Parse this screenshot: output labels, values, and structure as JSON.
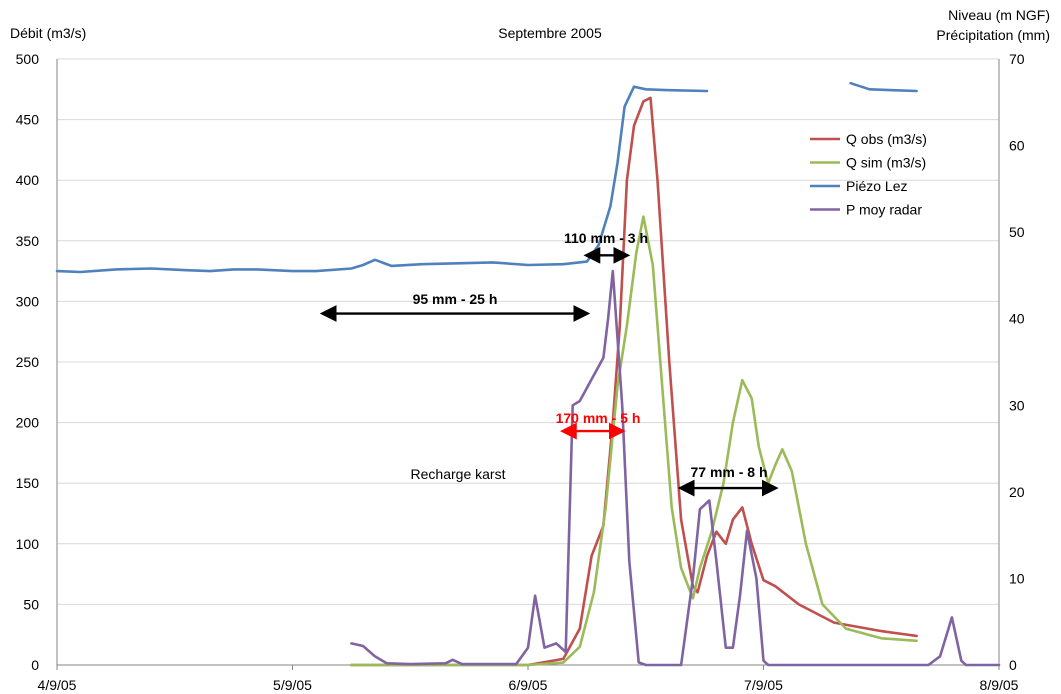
{
  "chart_data": {
    "type": "line",
    "title": "Septembre 2005",
    "ylabel_left": "Débit (m3/s)",
    "ylabel_right_line1": "Niveau (m NGF)",
    "ylabel_right_line2": "Précipitation (mm)",
    "x_ticks": [
      "4/9/05",
      "5/9/05",
      "6/9/05",
      "7/9/05",
      "8/9/05"
    ],
    "x_range_days": [
      4,
      8
    ],
    "ylim_left": [
      0,
      500
    ],
    "yticks_left": [
      "0",
      "50",
      "100",
      "150",
      "200",
      "250",
      "300",
      "350",
      "400",
      "450",
      "500"
    ],
    "ylim_right": [
      0,
      70
    ],
    "yticks_right": [
      "0",
      "10",
      "20",
      "30",
      "40",
      "50",
      "60",
      "70"
    ],
    "legend_position": "top-right",
    "grid": "horizontal",
    "series": [
      {
        "name": "Q obs (m3/s)",
        "color": "#c0504d",
        "axis": "left",
        "points": [
          [
            5.25,
            0
          ],
          [
            6.0,
            0
          ],
          [
            6.15,
            5
          ],
          [
            6.22,
            30
          ],
          [
            6.27,
            90
          ],
          [
            6.32,
            115
          ],
          [
            6.36,
            200
          ],
          [
            6.39,
            280
          ],
          [
            6.42,
            400
          ],
          [
            6.45,
            445
          ],
          [
            6.49,
            465
          ],
          [
            6.52,
            468
          ],
          [
            6.55,
            400
          ],
          [
            6.6,
            250
          ],
          [
            6.65,
            120
          ],
          [
            6.7,
            65
          ],
          [
            6.72,
            60
          ],
          [
            6.76,
            90
          ],
          [
            6.8,
            110
          ],
          [
            6.84,
            100
          ],
          [
            6.87,
            120
          ],
          [
            6.91,
            130
          ],
          [
            6.95,
            100
          ],
          [
            7.0,
            70
          ],
          [
            7.05,
            65
          ],
          [
            7.15,
            50
          ],
          [
            7.3,
            35
          ],
          [
            7.5,
            28
          ],
          [
            7.65,
            24
          ]
        ]
      },
      {
        "name": "Q sim (m3/s)",
        "color": "#9bbb59",
        "axis": "left",
        "points": [
          [
            5.25,
            0
          ],
          [
            6.0,
            0
          ],
          [
            6.15,
            2
          ],
          [
            6.22,
            15
          ],
          [
            6.28,
            60
          ],
          [
            6.33,
            130
          ],
          [
            6.38,
            230
          ],
          [
            6.42,
            280
          ],
          [
            6.46,
            340
          ],
          [
            6.49,
            370
          ],
          [
            6.53,
            330
          ],
          [
            6.57,
            230
          ],
          [
            6.61,
            130
          ],
          [
            6.65,
            80
          ],
          [
            6.7,
            55
          ],
          [
            6.73,
            80
          ],
          [
            6.78,
            110
          ],
          [
            6.83,
            150
          ],
          [
            6.87,
            200
          ],
          [
            6.91,
            235
          ],
          [
            6.95,
            220
          ],
          [
            6.98,
            180
          ],
          [
            7.02,
            150
          ],
          [
            7.05,
            165
          ],
          [
            7.08,
            178
          ],
          [
            7.12,
            160
          ],
          [
            7.18,
            100
          ],
          [
            7.25,
            50
          ],
          [
            7.35,
            30
          ],
          [
            7.5,
            22
          ],
          [
            7.65,
            20
          ]
        ]
      },
      {
        "name": "Piézo Lez",
        "color": "#4f81bd",
        "axis": "right",
        "segments": [
          [
            [
              4.0,
              45.5
            ],
            [
              4.1,
              45.4
            ],
            [
              4.25,
              45.7
            ],
            [
              4.4,
              45.8
            ],
            [
              4.55,
              45.6
            ],
            [
              4.65,
              45.5
            ],
            [
              4.75,
              45.7
            ],
            [
              4.85,
              45.7
            ],
            [
              5.0,
              45.5
            ],
            [
              5.1,
              45.5
            ],
            [
              5.25,
              45.8
            ],
            [
              5.3,
              46.2
            ],
            [
              5.35,
              46.8
            ],
            [
              5.42,
              46.1
            ],
            [
              5.55,
              46.3
            ],
            [
              5.7,
              46.4
            ],
            [
              5.85,
              46.5
            ],
            [
              6.0,
              46.2
            ],
            [
              6.15,
              46.3
            ],
            [
              6.25,
              46.6
            ],
            [
              6.3,
              48.5
            ],
            [
              6.35,
              53
            ],
            [
              6.38,
              58
            ],
            [
              6.41,
              64.5
            ],
            [
              6.45,
              66.8
            ],
            [
              6.5,
              66.5
            ],
            [
              6.6,
              66.4
            ],
            [
              6.76,
              66.3
            ]
          ],
          [
            [
              7.37,
              67.2
            ],
            [
              7.45,
              66.5
            ],
            [
              7.55,
              66.4
            ],
            [
              7.65,
              66.3
            ]
          ]
        ]
      },
      {
        "name": "P moy radar",
        "color": "#8064a2",
        "axis": "right",
        "segments": [
          [
            [
              5.25,
              2.5
            ],
            [
              5.3,
              2.2
            ],
            [
              5.35,
              1
            ],
            [
              5.4,
              0.2
            ],
            [
              5.5,
              0.1
            ],
            [
              5.65,
              0.2
            ],
            [
              5.68,
              0.6
            ],
            [
              5.72,
              0.1
            ],
            [
              5.95,
              0.1
            ],
            [
              6.0,
              2
            ],
            [
              6.03,
              8
            ],
            [
              6.07,
              2
            ],
            [
              6.12,
              2.5
            ],
            [
              6.16,
              1.5
            ],
            [
              6.19,
              30
            ],
            [
              6.22,
              30.5
            ],
            [
              6.27,
              33
            ],
            [
              6.32,
              35.5
            ],
            [
              6.34,
              40
            ],
            [
              6.36,
              45.5
            ],
            [
              6.4,
              30
            ],
            [
              6.43,
              12
            ],
            [
              6.47,
              0.3
            ],
            [
              6.5,
              0
            ],
            [
              6.65,
              0
            ],
            [
              6.7,
              10
            ],
            [
              6.73,
              18
            ],
            [
              6.77,
              19
            ],
            [
              6.8,
              12
            ],
            [
              6.84,
              2
            ],
            [
              6.87,
              2
            ],
            [
              6.9,
              8
            ],
            [
              6.93,
              15.5
            ],
            [
              6.97,
              10
            ],
            [
              7.0,
              0.5
            ],
            [
              7.02,
              0
            ],
            [
              7.7,
              0
            ],
            [
              7.75,
              1
            ],
            [
              7.8,
              5.5
            ],
            [
              7.84,
              0.5
            ],
            [
              7.86,
              0
            ],
            [
              8.0,
              0
            ]
          ]
        ]
      }
    ],
    "annotations": [
      {
        "text": "110 mm - 3 h",
        "color": "#000000",
        "arrow_from": 6.25,
        "arrow_to": 6.42,
        "y_left": 338
      },
      {
        "text": "95 mm - 25 h",
        "color": "#000000",
        "arrow_from": 5.13,
        "arrow_to": 6.25,
        "y_left": 290
      },
      {
        "text": "170 mm - 5 h",
        "color": "#ff0000",
        "arrow_from": 6.15,
        "arrow_to": 6.4,
        "y_left": 193
      },
      {
        "text": "77 mm - 8 h",
        "color": "#000000",
        "arrow_from": 6.65,
        "arrow_to": 7.05,
        "y_left": 146
      },
      {
        "text": "Recharge karst",
        "color": "#000000"
      }
    ]
  }
}
